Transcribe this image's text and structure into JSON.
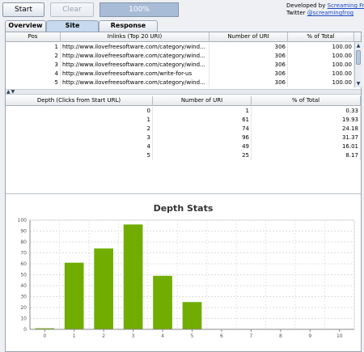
{
  "toolbar": {
    "start_label": "Start",
    "clear_label": "Clear",
    "progress_text": "100%",
    "progress_value": 1.0,
    "developed_by_text": "Developed by",
    "developer_link": "Screaming Frog",
    "twitter_text": "Twitter",
    "twitter_link": "@screamingfrog"
  },
  "tabs": [
    {
      "label": "Overview"
    },
    {
      "label": "Site Structure",
      "selected": true
    },
    {
      "label": "Response Times"
    }
  ],
  "inlinks_table": {
    "headers": [
      "Pos",
      "Inlinks (Top 20 URI)",
      "Number of URI",
      "% of Total"
    ],
    "rows": [
      {
        "pos": "1",
        "uri": "http://www.ilovefreesoftware.com/category/wind...",
        "count": "306",
        "pct": "100.00"
      },
      {
        "pos": "2",
        "uri": "http://www.ilovefreesoftware.com/category/wind...",
        "count": "306",
        "pct": "100.00"
      },
      {
        "pos": "3",
        "uri": "http://www.ilovefreesoftware.com/category/wind...",
        "count": "306",
        "pct": "100.00"
      },
      {
        "pos": "4",
        "uri": "http://www.ilovefreesoftware.com/write-for-us",
        "count": "306",
        "pct": "100.00"
      },
      {
        "pos": "5",
        "uri": "http://www.ilovefreesoftware.com/category/wind...",
        "count": "306",
        "pct": "100.00"
      }
    ]
  },
  "depth_table": {
    "headers": [
      "Depth (Clicks from Start URL)",
      "Number of URI",
      "% of Total"
    ],
    "rows": [
      {
        "depth": "0",
        "count": "1",
        "pct": "0.33"
      },
      {
        "depth": "1",
        "count": "61",
        "pct": "19.93"
      },
      {
        "depth": "2",
        "count": "74",
        "pct": "24.18"
      },
      {
        "depth": "3",
        "count": "96",
        "pct": "31.37"
      },
      {
        "depth": "4",
        "count": "49",
        "pct": "16.01"
      },
      {
        "depth": "5",
        "count": "25",
        "pct": "8.17"
      }
    ]
  },
  "chart_data": {
    "type": "bar",
    "title": "Depth Stats",
    "categories": [
      "0",
      "1",
      "2",
      "3",
      "4",
      "5",
      "6",
      "7",
      "8",
      "9",
      "10"
    ],
    "values": [
      1,
      61,
      74,
      96,
      49,
      25,
      null,
      null,
      null,
      null,
      null
    ],
    "xlabel": "",
    "ylabel": "",
    "ylim": [
      0,
      100
    ],
    "yticks": [
      "0",
      "10",
      "20",
      "30",
      "40",
      "50",
      "60",
      "70",
      "80",
      "90",
      "100"
    ],
    "grid": true,
    "bar_color": "#70ad00"
  },
  "colors": {
    "tab_selected": "#c6d9ee",
    "progress": "#a9bcd7",
    "link": "#1b49c8",
    "bar": "#70ad00"
  }
}
